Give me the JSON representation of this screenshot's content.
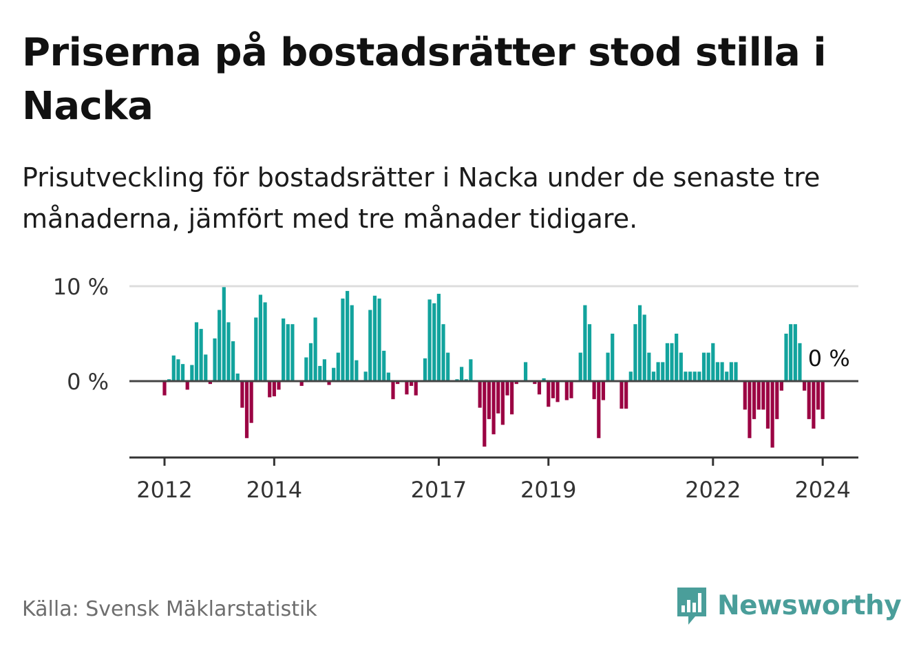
{
  "title": "Priserna på bostadsrätter stod stilla i Nacka",
  "subtitle": "Prisutveckling för bostadsrätter i Nacka under de senaste tre månaderna, jämfört med tre månader tidigare.",
  "source": "Källa: Svensk Mäklarstatistik",
  "brand": {
    "name": "Newsworthy",
    "icon": "newsworthy-logo-icon"
  },
  "colors": {
    "positive": "#12a39d",
    "negative": "#9b0443",
    "grid": "#dddddd",
    "axis": "#333333",
    "brand": "#4a9e9a"
  },
  "chart_data": {
    "type": "bar",
    "title": "Priserna på bostadsrätter stod stilla i Nacka",
    "xlabel": "",
    "ylabel": "",
    "ylim": [
      -8,
      10
    ],
    "yticks": [
      {
        "value": 0,
        "label": "0 %"
      },
      {
        "value": 10,
        "label": "10 %"
      }
    ],
    "xticks": [
      {
        "year": 2012,
        "label": "2012"
      },
      {
        "year": 2014,
        "label": "2014"
      },
      {
        "year": 2017,
        "label": "2017"
      },
      {
        "year": 2019,
        "label": "2019"
      },
      {
        "year": 2022,
        "label": "2022"
      },
      {
        "year": 2024,
        "label": "2024"
      }
    ],
    "start": "2012-01",
    "frequency": "monthly",
    "last_label": "0 %",
    "values": [
      -1.5,
      0.2,
      2.7,
      2.3,
      1.8,
      -0.9,
      1.7,
      6.2,
      5.5,
      2.8,
      -0.3,
      4.5,
      7.5,
      9.9,
      6.2,
      4.2,
      0.8,
      -2.8,
      -6.0,
      -4.4,
      6.7,
      9.1,
      8.3,
      -1.7,
      -1.6,
      -0.9,
      6.6,
      6.0,
      6.0,
      0.1,
      -0.5,
      2.5,
      4.0,
      6.7,
      1.6,
      2.3,
      -0.4,
      1.4,
      3.0,
      8.7,
      9.5,
      8.0,
      2.2,
      0.1,
      1.0,
      7.5,
      9.0,
      8.7,
      3.2,
      0.9,
      -1.9,
      -0.3,
      0.1,
      -1.4,
      -0.5,
      -1.5,
      0.1,
      2.4,
      8.6,
      8.2,
      9.2,
      6.0,
      3.0,
      0.1,
      0.2,
      1.5,
      0.2,
      2.3,
      0.1,
      -2.8,
      -6.9,
      -4.0,
      -5.6,
      -3.4,
      -4.6,
      -1.5,
      -3.5,
      -0.3,
      0.1,
      2.0,
      0.1,
      -0.3,
      -1.4,
      0.3,
      -2.7,
      -1.8,
      -2.2,
      0.1,
      -2.0,
      -1.8,
      0.1,
      3.0,
      8.0,
      6.0,
      -1.9,
      -6.0,
      -2.0,
      3.0,
      5.0,
      0.1,
      -2.9,
      -2.9,
      1.0,
      6.0,
      8.0,
      7.0,
      3.0,
      1.0,
      2.0,
      2.0,
      4.0,
      4.0,
      5.0,
      3.0,
      1.0,
      1.0,
      1.0,
      1.0,
      3.0,
      3.0,
      4.0,
      2.0,
      2.0,
      1.0,
      2.0,
      2.0,
      0.1,
      -3.0,
      -6.0,
      -4.0,
      -3.0,
      -3.0,
      -5.0,
      -7.0,
      -4.0,
      -1.0,
      5.0,
      6.0,
      6.0,
      4.0,
      -1.0,
      -4.0,
      -5.0,
      -3.0,
      -4.0,
      0.0
    ]
  }
}
